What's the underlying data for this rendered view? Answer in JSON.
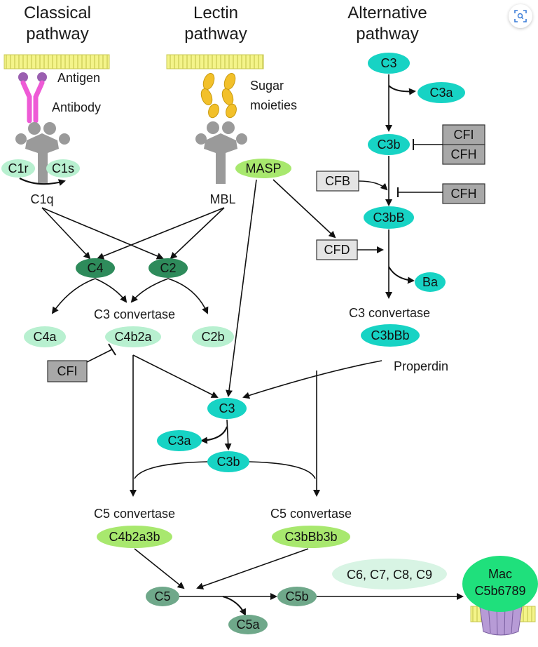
{
  "headers": {
    "classical": [
      "Classical",
      "pathway"
    ],
    "lectin": [
      "Lectin",
      "pathway"
    ],
    "alternative": [
      "Alternative",
      "pathway"
    ]
  },
  "labels": {
    "antigen": "Antigen",
    "antibody": "Antibody",
    "sugar": [
      "Sugar",
      "moieties"
    ],
    "c1q": "C1q",
    "mbl": "MBL",
    "c3_convertase_left": "C3 convertase",
    "c3_convertase_right": "C3 convertase",
    "properdin": "Properdin",
    "c5_convertase_left": "C5 convertase",
    "c5_convertase_right": "C5 convertase"
  },
  "nodes": {
    "c1r": "C1r",
    "c1s": "C1s",
    "masp": "MASP",
    "c4": "C4",
    "c2": "C2",
    "c4a": "C4a",
    "c4b2a": "C4b2a",
    "c2b": "C2b",
    "c3_alt": "C3",
    "c3a_alt": "C3a",
    "c3b_alt": "C3b",
    "c3bb": "C3bB",
    "ba": "Ba",
    "c3bbb": "C3bBb",
    "c3_main": "C3",
    "c3a_main": "C3a",
    "c3b_main": "C3b",
    "c4b2a3b": "C4b2a3b",
    "c3bbb3b": "C3bBb3b",
    "c5": "C5",
    "c5b": "C5b",
    "c5a": "C5a",
    "c6789": "C6, C7, C8, C9",
    "mac": [
      "Mac",
      "C5b6789"
    ]
  },
  "boxes": {
    "cfi_top": "CFI",
    "cfh_top": "CFH",
    "cfb": "CFB",
    "cfh_mid": "CFH",
    "cfd": "CFD",
    "cfi_left": "CFI"
  },
  "colors": {
    "cyan": "#17d3c4",
    "dark_green": "#2e8b5b",
    "light_green": "#b8f0d0",
    "lime": "#a8e86e",
    "gray_green": "#6fa88a",
    "pale": "#d8f4e4",
    "mac_green": "#1fe07c",
    "membrane": "#f4f48a",
    "antibody": "#ee5ad6",
    "antigen": "#9a5fb0",
    "sugar": "#f2c02a",
    "receptor": "#9a9a9a",
    "box_gray": "#a8a8a8",
    "box_light": "#e4e4e4",
    "pore": "#b79bd6"
  },
  "icons": {
    "zoom": "zoom-icon"
  }
}
